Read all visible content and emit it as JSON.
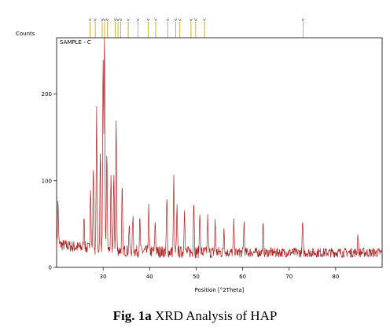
{
  "chart_data": {
    "type": "line",
    "ylabel": "Counts",
    "xlabel": "Position [°2Theta]",
    "xlim": [
      20,
      90
    ],
    "ylim": [
      0,
      250
    ],
    "x_ticks": [
      30,
      40,
      50,
      60,
      70,
      80
    ],
    "y_ticks": [
      0,
      100,
      200
    ],
    "panel_label": "SAMPLE - C",
    "grid": false,
    "series": [
      {
        "color": "#b02020",
        "peaks": [
          {
            "x": 20.3,
            "y": 48
          },
          {
            "x": 25.9,
            "y": 40
          },
          {
            "x": 27.3,
            "y": 75
          },
          {
            "x": 27.9,
            "y": 95
          },
          {
            "x": 28.6,
            "y": 160
          },
          {
            "x": 29.4,
            "y": 110
          },
          {
            "x": 30.0,
            "y": 225
          },
          {
            "x": 30.3,
            "y": 260
          },
          {
            "x": 30.8,
            "y": 115
          },
          {
            "x": 31.7,
            "y": 80
          },
          {
            "x": 32.3,
            "y": 85
          },
          {
            "x": 32.8,
            "y": 150
          },
          {
            "x": 34.1,
            "y": 70
          },
          {
            "x": 35.6,
            "y": 30
          },
          {
            "x": 36.4,
            "y": 40
          },
          {
            "x": 37.9,
            "y": 35
          },
          {
            "x": 39.8,
            "y": 50
          },
          {
            "x": 41.2,
            "y": 35
          },
          {
            "x": 43.7,
            "y": 60
          },
          {
            "x": 45.2,
            "y": 85
          },
          {
            "x": 45.9,
            "y": 50
          },
          {
            "x": 47.5,
            "y": 55
          },
          {
            "x": 49.5,
            "y": 60
          },
          {
            "x": 50.8,
            "y": 50
          },
          {
            "x": 52.5,
            "y": 40
          },
          {
            "x": 54.1,
            "y": 35
          },
          {
            "x": 56.0,
            "y": 30
          },
          {
            "x": 58.1,
            "y": 35
          },
          {
            "x": 60.3,
            "y": 35
          },
          {
            "x": 64.4,
            "y": 30
          },
          {
            "x": 72.9,
            "y": 35
          },
          {
            "x": 84.8,
            "y": 22
          }
        ],
        "baseline": 17
      }
    ],
    "reference_peak_markers": [
      27.2,
      28.3,
      29.8,
      30.3,
      30.9,
      32.6,
      33.2,
      33.8,
      35.4,
      37.5,
      39.7,
      41.3,
      43.9,
      45.6,
      46.5,
      48.9,
      49.9,
      51.8,
      73.0
    ]
  },
  "caption": {
    "fig": "Fig. 1a",
    "text": " XRD Analysis of HAP"
  }
}
